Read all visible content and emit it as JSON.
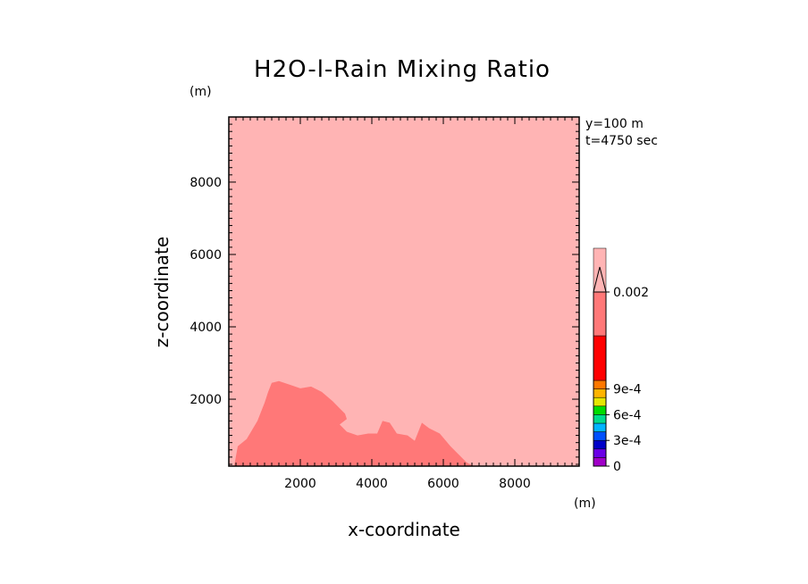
{
  "chart_data": {
    "type": "contour",
    "title": "H2O-l-Rain Mixing Ratio",
    "xlabel": "x-coordinate",
    "ylabel": "z-coordinate",
    "x_unit": "(m)",
    "y_unit": "(m)",
    "xlim": [
      0,
      9800
    ],
    "ylim": [
      150,
      9800
    ],
    "xticks": [
      2000,
      4000,
      6000,
      8000
    ],
    "yticks": [
      2000,
      4000,
      6000,
      8000
    ],
    "annotations": [
      "y=100 m",
      "t=4750 sec"
    ],
    "colorbar": {
      "levels": [
        0,
        0.0001,
        0.0002,
        0.0003,
        0.0004,
        0.0005,
        0.0006,
        0.0007,
        0.0008,
        0.0009,
        0.001,
        0.0015,
        0.002
      ],
      "colors": [
        "#a000c8",
        "#6a00e6",
        "#0000c8",
        "#0050ff",
        "#00b4ff",
        "#00dc8c",
        "#00dc00",
        "#e6e600",
        "#ffb400",
        "#ff7800",
        "#ff0000",
        "#ff7878",
        "#ffb4b4"
      ],
      "extend": "max",
      "labels": [
        {
          "value": 0,
          "text": "0"
        },
        {
          "value": 0.0003,
          "text": "3e-4"
        },
        {
          "value": 0.0006,
          "text": "6e-4"
        },
        {
          "value": 0.0009,
          "text": "9e-4"
        },
        {
          "value": 0.002,
          "text": "0.002"
        }
      ]
    },
    "background_level_color": "#ffb4b4",
    "fields": [
      {
        "color": "#ff7878",
        "outline": [
          [
            150,
            150
          ],
          [
            250,
            700
          ],
          [
            500,
            900
          ],
          [
            800,
            1400
          ],
          [
            1000,
            1900
          ],
          [
            1100,
            2200
          ],
          [
            1200,
            2450
          ],
          [
            1400,
            2500
          ],
          [
            1700,
            2400
          ],
          [
            2000,
            2300
          ],
          [
            2300,
            2350
          ],
          [
            2600,
            2200
          ],
          [
            2900,
            1950
          ],
          [
            3100,
            1750
          ],
          [
            3250,
            1600
          ],
          [
            3300,
            1450
          ],
          [
            3100,
            1300
          ],
          [
            3300,
            1100
          ],
          [
            3600,
            1000
          ],
          [
            3900,
            1050
          ],
          [
            4150,
            1050
          ],
          [
            4300,
            1400
          ],
          [
            4500,
            1350
          ],
          [
            4700,
            1050
          ],
          [
            5000,
            1000
          ],
          [
            5200,
            850
          ],
          [
            5400,
            1350
          ],
          [
            5600,
            1200
          ],
          [
            5900,
            1050
          ],
          [
            6200,
            700
          ],
          [
            6450,
            450
          ],
          [
            6650,
            250
          ],
          [
            6850,
            150
          ]
        ]
      }
    ]
  }
}
